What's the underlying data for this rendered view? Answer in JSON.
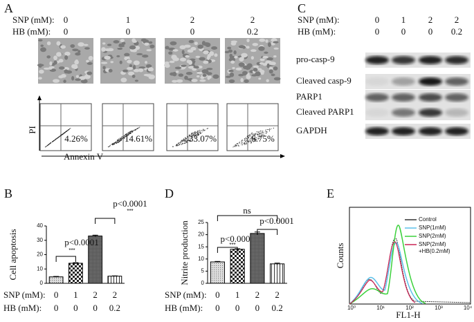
{
  "panels": {
    "a": "A",
    "b": "B",
    "c": "C",
    "d": "D",
    "e": "E"
  },
  "panel_a": {
    "snp_label": "SNP (mM):",
    "snp": [
      "0",
      "1",
      "2",
      "2"
    ],
    "hb_label": "HB (mM):",
    "hb": [
      "0",
      "0",
      "0",
      "0.2"
    ],
    "percent": [
      "4.26%",
      "14.61%",
      "33.07%",
      "6.75%"
    ],
    "y_label": "PI",
    "x_label": "Annexin V"
  },
  "panel_c": {
    "snp_label": "SNP (mM):",
    "snp": [
      "0",
      "1",
      "2",
      "2"
    ],
    "hb_label": "HB (mM):",
    "hb": [
      "0",
      "0",
      "0",
      "0.2"
    ],
    "blots": [
      "pro-casp-9",
      "Cleaved casp-9",
      "PARP1",
      "Cleaved PARP1",
      "GAPDH"
    ]
  },
  "panel_e": {
    "y_label": "Counts",
    "x_label": "FL1-H",
    "xticks": [
      "10⁰",
      "10¹",
      "10²",
      "10³",
      "10⁴"
    ],
    "legend": [
      "Control",
      "SNP(1mM)",
      "SNP(2mM)",
      "SNP(2mM)",
      "+HB(0.2mM)"
    ]
  },
  "chart_data": [
    {
      "type": "bar",
      "y_label": "Cell apoptosis",
      "row_label": "SNP (mM):",
      "categories": [
        "0",
        "1",
        "2",
        "2"
      ],
      "row2_label": "HB (mM):",
      "categories2": [
        "0",
        "0",
        "0",
        "0.2"
      ],
      "values": [
        4.5,
        14,
        33,
        5
      ],
      "errors": [
        0.3,
        0.4,
        0.6,
        0.2
      ],
      "ylim": [
        0,
        40
      ],
      "yticks": [
        0,
        10,
        20,
        30,
        40
      ],
      "annotations": [
        "p<0.0001",
        "***",
        "p<0.0001",
        "***"
      ]
    },
    {
      "type": "bar",
      "y_label": "Nitrite production",
      "row_label": "SNP (mM):",
      "categories": [
        "0",
        "1",
        "2",
        "2"
      ],
      "row2_label": "HB (mM):",
      "categories2": [
        "0",
        "0",
        "0",
        "0.2"
      ],
      "values": [
        8.8,
        14,
        20.5,
        8
      ],
      "errors": [
        0.2,
        0.2,
        0.6,
        0.3
      ],
      "ylim": [
        0,
        25
      ],
      "yticks": [
        0,
        5,
        10,
        15,
        20,
        25
      ],
      "annotations": [
        "ns",
        "p<0.000",
        "***",
        "p<0.0001"
      ]
    }
  ]
}
